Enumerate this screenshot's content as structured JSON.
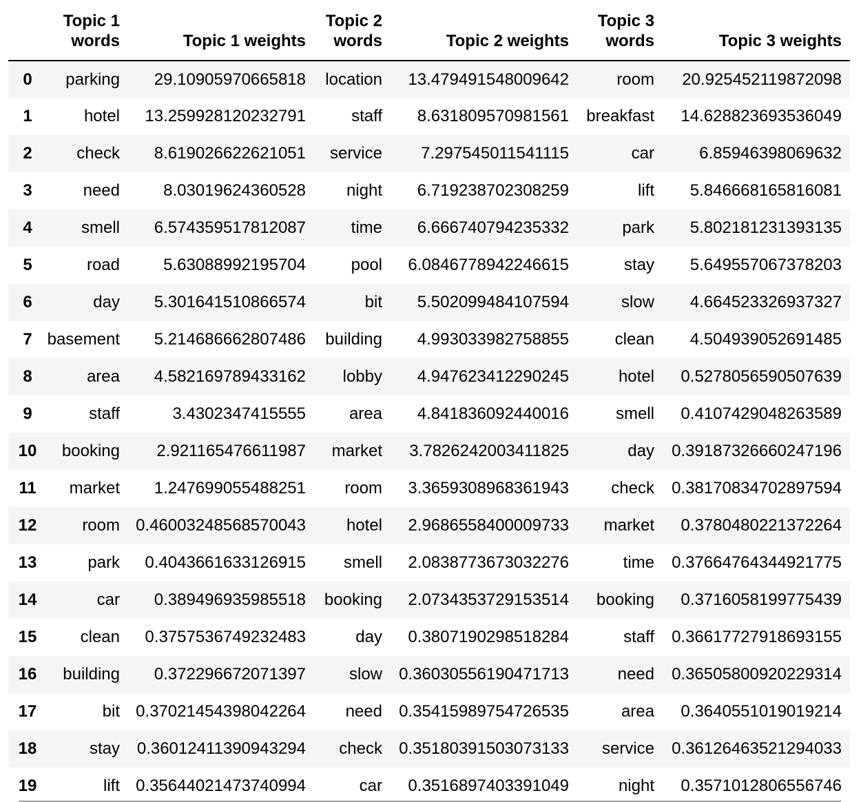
{
  "table": {
    "columns": [
      "",
      "Topic 1\nwords",
      "Topic 1 weights",
      "Topic 2\nwords",
      "Topic 2 weights",
      "Topic 3\nwords",
      "Topic 3 weights"
    ],
    "header_lines": {
      "topic1_words": [
        "Topic 1",
        "words"
      ],
      "topic2_words": [
        "Topic 2",
        "words"
      ],
      "topic3_words": [
        "Topic 3",
        "words"
      ]
    },
    "rows": [
      [
        "0",
        "parking",
        "29.10905970665818",
        "location",
        "13.479491548009642",
        "room",
        "20.925452119872098"
      ],
      [
        "1",
        "hotel",
        "13.259928120232791",
        "staff",
        "8.631809570981561",
        "breakfast",
        "14.628823693536049"
      ],
      [
        "2",
        "check",
        "8.619026622621051",
        "service",
        "7.297545011541115",
        "car",
        "6.85946398069632"
      ],
      [
        "3",
        "need",
        "8.03019624360528",
        "night",
        "6.719238702308259",
        "lift",
        "5.846668165816081"
      ],
      [
        "4",
        "smell",
        "6.574359517812087",
        "time",
        "6.666740794235332",
        "park",
        "5.802181231393135"
      ],
      [
        "5",
        "road",
        "5.63088992195704",
        "pool",
        "6.0846778942246615",
        "stay",
        "5.649557067378203"
      ],
      [
        "6",
        "day",
        "5.301641510866574",
        "bit",
        "5.502099484107594",
        "slow",
        "4.664523326937327"
      ],
      [
        "7",
        "basement",
        "5.214686662807486",
        "building",
        "4.993033982758855",
        "clean",
        "4.504939052691485"
      ],
      [
        "8",
        "area",
        "4.582169789433162",
        "lobby",
        "4.947623412290245",
        "hotel",
        "0.5278056590507639"
      ],
      [
        "9",
        "staff",
        "3.4302347415555",
        "area",
        "4.841836092440016",
        "smell",
        "0.4107429048263589"
      ],
      [
        "10",
        "booking",
        "2.921165476611987",
        "market",
        "3.7826242003411825",
        "day",
        "0.39187326660247196"
      ],
      [
        "11",
        "market",
        "1.247699055488251",
        "room",
        "3.3659308968361943",
        "check",
        "0.38170834702897594"
      ],
      [
        "12",
        "room",
        "0.46003248568570043",
        "hotel",
        "2.9686558400009733",
        "market",
        "0.3780480221372264"
      ],
      [
        "13",
        "park",
        "0.4043661633126915",
        "smell",
        "2.0838773673032276",
        "time",
        "0.37664764344921775"
      ],
      [
        "14",
        "car",
        "0.389496935985518",
        "booking",
        "2.0734353729153514",
        "booking",
        "0.3716058199775439"
      ],
      [
        "15",
        "clean",
        "0.3757536749232483",
        "day",
        "0.3807190298518284",
        "staff",
        "0.36617727918693155"
      ],
      [
        "16",
        "building",
        "0.372296672071397",
        "slow",
        "0.36030556190471713",
        "need",
        "0.36505800920229314"
      ],
      [
        "17",
        "bit",
        "0.37021454398042264",
        "need",
        "0.35415989754726535",
        "area",
        "0.3640551019019214"
      ],
      [
        "18",
        "stay",
        "0.36012411390943294",
        "check",
        "0.35180391503073133",
        "service",
        "0.36126463521294033"
      ],
      [
        "19",
        "lift",
        "0.35644021473740994",
        "car",
        "0.3516897403391049",
        "night",
        "0.3571012806556746"
      ]
    ]
  },
  "colors": {
    "stripe": "#f5f5f5",
    "background": "#ffffff",
    "text": "#000000",
    "header_rule": "#000000"
  }
}
